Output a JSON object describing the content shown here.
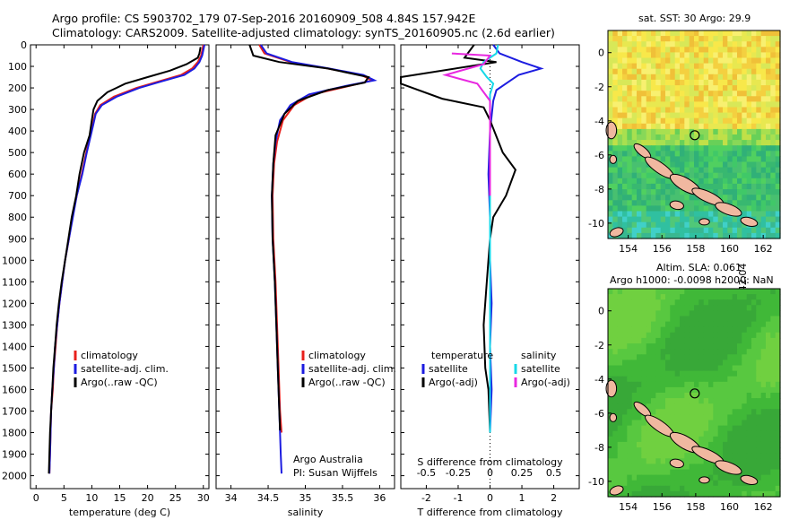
{
  "header": {
    "line1": "Argo profile: CS 5903702_179 07-Sep-2016 20160909_508 4.84S 157.942E",
    "line2": "Climatology: CARS2009. Satellite-adjusted climatology: synTS_20160905.nc (2.6d earlier)"
  },
  "credit": {
    "org": "Argo Australia",
    "pi": "PI: Susan Wijffels",
    "stamp": "©IMOS 12-Sep-2016 20:42:04"
  },
  "colors": {
    "climatology": "#e8201c",
    "satellite": "#1c1ce0",
    "argo": "#000000",
    "salinity_satellite": "#18d8e8",
    "salinity_argo": "#e828e0"
  },
  "chart_data": [
    {
      "type": "line",
      "xlabel": "temperature (deg C)",
      "ylabel": "",
      "xlim": [
        -1,
        31
      ],
      "ylim": [
        2060,
        0
      ],
      "xticks": [
        0,
        5,
        10,
        15,
        20,
        25,
        30
      ],
      "xtick_labels": [
        "0",
        "5",
        "10",
        "15",
        "20",
        "25",
        "30"
      ],
      "yticks": [
        0,
        100,
        200,
        300,
        400,
        500,
        600,
        700,
        800,
        900,
        1000,
        1100,
        1200,
        1300,
        1400,
        1500,
        1600,
        1700,
        1800,
        1900,
        2000
      ],
      "ytick_labels": [
        "0",
        "100",
        "200",
        "300",
        "400",
        "500",
        "600",
        "700",
        "800",
        "900",
        "1000",
        "1100",
        "1200",
        "1300",
        "1400",
        "1500",
        "1600",
        "1700",
        "1800",
        "1900",
        "2000"
      ],
      "legend": [
        "climatology",
        "satellite-adj. clim.",
        "Argo(..raw -QC)"
      ],
      "series": [
        {
          "name": "climatology",
          "color": "#e8201c",
          "points": [
            [
              30,
              0
            ],
            [
              29.6,
              50
            ],
            [
              29,
              80
            ],
            [
              28,
              110
            ],
            [
              26,
              140
            ],
            [
              22,
              170
            ],
            [
              18,
              200
            ],
            [
              14,
              240
            ],
            [
              11.5,
              280
            ],
            [
              10.6,
              320
            ],
            [
              9.9,
              400
            ],
            [
              9,
              500
            ],
            [
              8.2,
              600
            ],
            [
              7.3,
              700
            ],
            [
              6.5,
              800
            ],
            [
              5.9,
              900
            ],
            [
              5.2,
              1000
            ],
            [
              4.7,
              1100
            ],
            [
              4.2,
              1200
            ],
            [
              3.8,
              1300
            ],
            [
              3.5,
              1400
            ],
            [
              3.2,
              1500
            ],
            [
              3,
              1600
            ],
            [
              2.7,
              1700
            ],
            [
              2.6,
              1800
            ],
            [
              2.5,
              1900
            ],
            [
              2.4,
              1990
            ]
          ]
        },
        {
          "name": "satellite-adj. clim.",
          "color": "#1c1ce0",
          "points": [
            [
              30.2,
              0
            ],
            [
              29.8,
              50
            ],
            [
              29.3,
              80
            ],
            [
              28.4,
              110
            ],
            [
              26.6,
              140
            ],
            [
              22.5,
              170
            ],
            [
              18.5,
              200
            ],
            [
              14.5,
              240
            ],
            [
              11.8,
              280
            ],
            [
              10.7,
              320
            ],
            [
              10,
              400
            ],
            [
              9.1,
              500
            ],
            [
              8.3,
              600
            ],
            [
              7.3,
              700
            ],
            [
              6.6,
              800
            ],
            [
              5.9,
              900
            ],
            [
              5.2,
              1000
            ],
            [
              4.7,
              1100
            ],
            [
              4.2,
              1200
            ],
            [
              3.8,
              1300
            ],
            [
              3.4,
              1400
            ],
            [
              3.2,
              1500
            ],
            [
              2.9,
              1600
            ],
            [
              2.7,
              1700
            ],
            [
              2.6,
              1800
            ],
            [
              2.5,
              1900
            ],
            [
              2.4,
              1990
            ]
          ]
        },
        {
          "name": "Argo(..raw -QC)",
          "color": "#000000",
          "points": [
            [
              29.5,
              10
            ],
            [
              29.3,
              40
            ],
            [
              29,
              60
            ],
            [
              27,
              90
            ],
            [
              24,
              120
            ],
            [
              20,
              150
            ],
            [
              16,
              180
            ],
            [
              12.8,
              220
            ],
            [
              11,
              260
            ],
            [
              10.3,
              300
            ],
            [
              10,
              350
            ],
            [
              9.6,
              420
            ],
            [
              8.6,
              500
            ],
            [
              7.8,
              600
            ],
            [
              7.2,
              700
            ],
            [
              6.4,
              800
            ],
            [
              5.8,
              900
            ],
            [
              5.2,
              1000
            ],
            [
              4.6,
              1100
            ],
            [
              4.1,
              1200
            ],
            [
              3.7,
              1300
            ],
            [
              3.4,
              1400
            ],
            [
              3.1,
              1500
            ],
            [
              2.9,
              1600
            ],
            [
              2.7,
              1700
            ],
            [
              2.5,
              1800
            ],
            [
              2.4,
              1900
            ],
            [
              2.3,
              1990
            ]
          ]
        }
      ]
    },
    {
      "type": "line",
      "xlabel": "salinity",
      "xlim": [
        33.8,
        36.2
      ],
      "ylim": [
        2060,
        0
      ],
      "xticks": [
        34,
        34.5,
        35,
        35.5,
        36
      ],
      "xtick_labels": [
        "34",
        "34.5",
        "35",
        "35.5",
        "36"
      ],
      "legend": [
        "climatology",
        "satellite-adj. clim.",
        "Argo(..raw -QC)"
      ],
      "series": [
        {
          "name": "climatology",
          "color": "#e8201c",
          "points": [
            [
              34.38,
              0
            ],
            [
              34.45,
              40
            ],
            [
              34.8,
              80
            ],
            [
              35.3,
              110
            ],
            [
              35.75,
              140
            ],
            [
              35.9,
              165
            ],
            [
              35.6,
              190
            ],
            [
              35.1,
              230
            ],
            [
              34.85,
              280
            ],
            [
              34.7,
              350
            ],
            [
              34.62,
              450
            ],
            [
              34.58,
              550
            ],
            [
              34.56,
              700
            ],
            [
              34.57,
              900
            ],
            [
              34.6,
              1100
            ],
            [
              34.62,
              1300
            ],
            [
              34.64,
              1500
            ],
            [
              34.66,
              1700
            ],
            [
              34.68,
              1800
            ]
          ]
        },
        {
          "name": "satellite-adj. clim.",
          "color": "#1c1ce0",
          "points": [
            [
              34.4,
              0
            ],
            [
              34.48,
              40
            ],
            [
              34.82,
              80
            ],
            [
              35.32,
              110
            ],
            [
              35.78,
              140
            ],
            [
              35.93,
              165
            ],
            [
              35.55,
              190
            ],
            [
              35.05,
              230
            ],
            [
              34.8,
              280
            ],
            [
              34.66,
              350
            ],
            [
              34.6,
              450
            ],
            [
              34.57,
              550
            ],
            [
              34.55,
              700
            ],
            [
              34.56,
              900
            ],
            [
              34.59,
              1100
            ],
            [
              34.61,
              1300
            ],
            [
              34.63,
              1500
            ],
            [
              34.65,
              1700
            ],
            [
              34.67,
              1900
            ],
            [
              34.68,
              1990
            ]
          ]
        },
        {
          "name": "Argo(..raw -QC)",
          "color": "#000000",
          "points": [
            [
              34.25,
              0
            ],
            [
              34.3,
              50
            ],
            [
              34.65,
              80
            ],
            [
              35.3,
              110
            ],
            [
              35.85,
              150
            ],
            [
              35.8,
              175
            ],
            [
              35.3,
              210
            ],
            [
              34.9,
              260
            ],
            [
              34.72,
              320
            ],
            [
              34.6,
              420
            ],
            [
              34.57,
              550
            ],
            [
              34.55,
              700
            ],
            [
              34.56,
              900
            ],
            [
              34.59,
              1100
            ],
            [
              34.61,
              1300
            ],
            [
              34.63,
              1500
            ],
            [
              34.65,
              1700
            ],
            [
              34.66,
              1790
            ]
          ]
        }
      ]
    },
    {
      "type": "line",
      "xlabel": "T difference from climatology",
      "top_label": "S difference from climatology",
      "xlim": [
        -2.8,
        2.8
      ],
      "ylim": [
        2060,
        0
      ],
      "xticks": [
        -2,
        -1,
        0,
        1,
        2
      ],
      "xtick_labels": [
        "-2",
        "-1",
        "0",
        "1",
        "2"
      ],
      "top_ticks": [
        -0.5,
        -0.25,
        0,
        0.25,
        0.5
      ],
      "top_tick_labels": [
        "-0.5",
        "-0.25",
        "0",
        "0.25",
        "0.5"
      ],
      "legend_left_title": "temperature",
      "legend_right_title": "salinity",
      "legend_left": [
        "satellite",
        "Argo(-adj)"
      ],
      "legend_right": [
        "satellite",
        "Argo(-adj)"
      ],
      "series": [
        {
          "name": "satellite",
          "color": "#1c1ce0",
          "points": [
            [
              0.1,
              0
            ],
            [
              0.3,
              40
            ],
            [
              1,
              80
            ],
            [
              1.6,
              110
            ],
            [
              0.9,
              140
            ],
            [
              0.6,
              170
            ],
            [
              0.2,
              210
            ],
            [
              0.1,
              260
            ],
            [
              0,
              400
            ],
            [
              -0.05,
              600
            ],
            [
              0,
              800
            ],
            [
              0,
              1000
            ],
            [
              0.05,
              1200
            ],
            [
              0,
              1400
            ],
            [
              0.05,
              1600
            ],
            [
              0,
              1800
            ]
          ]
        },
        {
          "name": "Argo(-adj)",
          "color": "#000000",
          "points": [
            [
              -0.5,
              0
            ],
            [
              -0.8,
              60
            ],
            [
              0.2,
              80
            ],
            [
              -2.8,
              150
            ],
            [
              -2.8,
              180
            ],
            [
              -1.5,
              250
            ],
            [
              -0.2,
              290
            ],
            [
              0,
              350
            ],
            [
              0.4,
              500
            ],
            [
              0.8,
              580
            ],
            [
              0.5,
              700
            ],
            [
              0.1,
              800
            ],
            [
              0,
              900
            ],
            [
              -0.1,
              1100
            ],
            [
              -0.2,
              1300
            ],
            [
              -0.15,
              1500
            ],
            [
              -0.05,
              1600
            ],
            [
              0,
              1800
            ]
          ]
        },
        {
          "name": "satellite",
          "color": "#18d8e8",
          "points": [
            [
              0.25,
              0
            ],
            [
              0.2,
              40
            ],
            [
              -0.2,
              80
            ],
            [
              -0.3,
              110
            ],
            [
              -0.1,
              150
            ],
            [
              0.1,
              180
            ],
            [
              0,
              230
            ],
            [
              0,
              300
            ],
            [
              0,
              400
            ],
            [
              0,
              600
            ],
            [
              0,
              800
            ],
            [
              0,
              1000
            ],
            [
              0,
              1200
            ],
            [
              0,
              1400
            ],
            [
              0,
              1600
            ],
            [
              0,
              1800
            ]
          ]
        },
        {
          "name": "Argo(-adj)",
          "color": "#e828e0",
          "points": [
            [
              -1.2,
              40
            ],
            [
              0,
              50
            ],
            [
              -0.2,
              90
            ],
            [
              -1.4,
              140
            ],
            [
              -0.4,
              180
            ],
            [
              -0.2,
              220
            ],
            [
              0,
              260
            ],
            [
              0,
              350
            ],
            [
              0,
              500
            ],
            [
              0,
              700
            ]
          ]
        }
      ]
    }
  ],
  "maps": [
    {
      "title": "sat. SST: 30 Argo: 29.9",
      "subtitle": "",
      "xticks": [
        "154",
        "156",
        "158",
        "160",
        "162"
      ],
      "yticks": [
        "0",
        "-2",
        "-4",
        "-6",
        "-8",
        "-10"
      ]
    },
    {
      "title": "Altim. SLA: 0.061",
      "subtitle": "Argo h1000: -0.0098 h2000: NaN",
      "xticks": [
        "154",
        "156",
        "158",
        "160",
        "162"
      ],
      "yticks": [
        "0",
        "-2",
        "-4",
        "-6",
        "-8",
        "-10"
      ]
    }
  ]
}
